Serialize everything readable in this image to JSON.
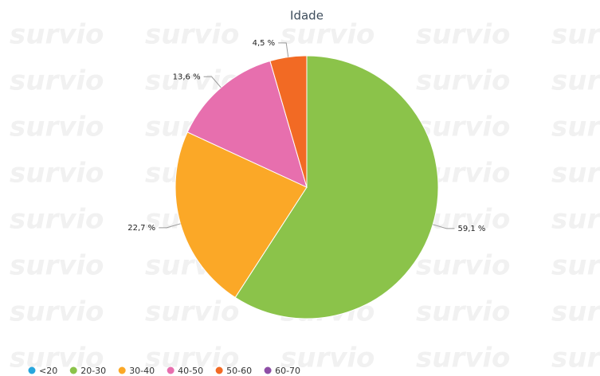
{
  "chart_data": {
    "type": "pie",
    "title": "Idade",
    "watermark": "survio",
    "categories": [
      "<20",
      "20-30",
      "30-40",
      "40-50",
      "50-60",
      "60-70"
    ],
    "values": [
      0,
      59.1,
      22.7,
      13.6,
      4.5,
      0
    ],
    "value_labels": [
      null,
      "59,1 %",
      "22,7 %",
      "13,6 %",
      "4,5 %",
      null
    ],
    "colors": [
      "#27a6dd",
      "#8bc34a",
      "#fba827",
      "#e76fae",
      "#f26a24",
      "#8e4ea6"
    ],
    "legend": "bottom-left"
  }
}
